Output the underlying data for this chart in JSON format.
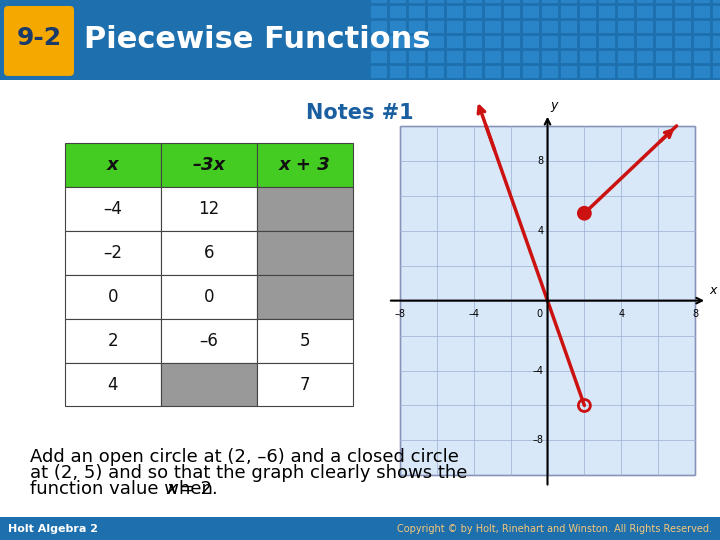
{
  "title_badge": "9-2",
  "title_text": "Piecewise Functions",
  "subtitle": "Notes #1",
  "header_bg": "#1e6fad",
  "header_bg2": "#2a85c8",
  "badge_bg": "#f5a800",
  "badge_text_color": "#1a3a6a",
  "title_color": "#ffffff",
  "subtitle_color": "#1a5fa0",
  "table_headers": [
    "x",
    "–3x",
    "x + 3"
  ],
  "table_data": [
    [
      "–4",
      "12",
      ""
    ],
    [
      "–2",
      "6",
      ""
    ],
    [
      "0",
      "0",
      ""
    ],
    [
      "2",
      "–6",
      "5"
    ],
    [
      "4",
      "",
      "7"
    ]
  ],
  "header_green": "#44cc22",
  "cell_gray": "#999999",
  "grid_bg": "#d8e8f8",
  "grid_color": "#9aaed0",
  "axis_color": "#000000",
  "line_color": "#cc1111",
  "note_text": "Add an open circle at (2, –6) and a closed circle\nat (2, 5) and so that the graph clearly shows the\nfunction value when ",
  "note_italic": "x",
  "note_end": " = 2.",
  "note_color": "#000000",
  "bottom_left": "Holt Algebra 2",
  "bottom_right": "Copyright © by Holt, Rinehart and Winston. All Rights Reserved.",
  "footer_bg": "#1e6fad",
  "footer_text_color": "#ffffff",
  "footer_right_color": "#f5c87a"
}
